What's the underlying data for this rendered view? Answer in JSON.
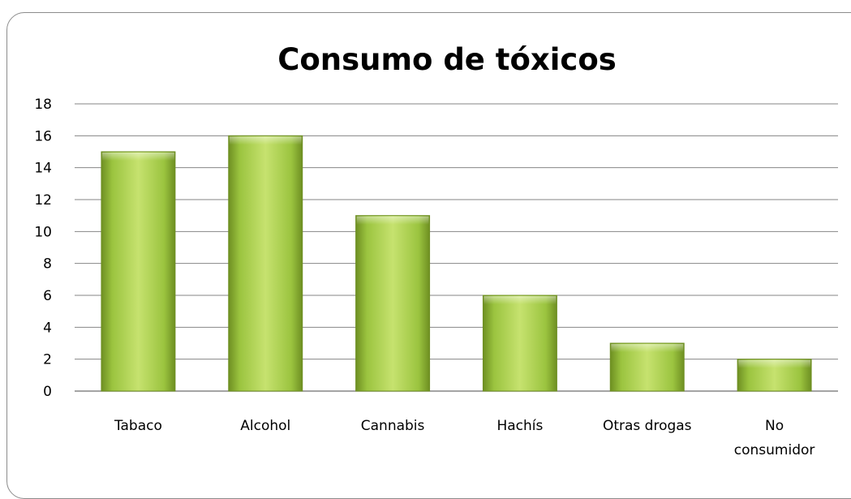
{
  "chart_data": {
    "type": "bar",
    "title": "Consumo de tóxicos",
    "xlabel": "",
    "ylabel": "",
    "categories": [
      "Tabaco",
      "Alcohol",
      "Cannabis",
      "Hachís",
      "Otras drogas",
      "No consumidor"
    ],
    "category_lines": [
      [
        "Tabaco"
      ],
      [
        "Alcohol"
      ],
      [
        "Cannabis"
      ],
      [
        "Hachís"
      ],
      [
        "Otras drogas"
      ],
      [
        "No",
        "consumidor"
      ]
    ],
    "values": [
      15,
      16,
      11,
      6,
      3,
      2
    ],
    "ylim": [
      0,
      18
    ],
    "yticks": [
      0,
      2,
      4,
      6,
      8,
      10,
      12,
      14,
      16,
      18
    ],
    "grid": true,
    "legend": "none",
    "bar_color_light": "#c6e26f",
    "bar_color_mid": "#9bc43f",
    "bar_color_dark": "#6e8f22",
    "grid_color": "#868686"
  }
}
